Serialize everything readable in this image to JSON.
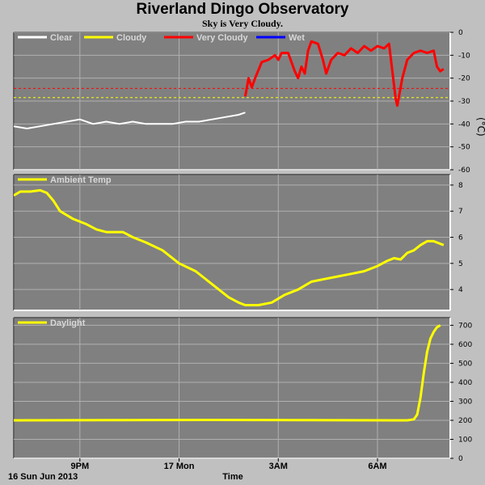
{
  "header": {
    "title": "Riverland Dingo Observatory",
    "subtitle": "Sky is Very Cloudy."
  },
  "x_axis": {
    "tick_labels": [
      "9PM",
      "17 Mon",
      "3AM",
      "6AM"
    ],
    "tick_hours": [
      21,
      24,
      27,
      30
    ],
    "start_label": "16 Sun Jun 2013",
    "label": "Time"
  },
  "colors": {
    "clear": "#ffffff",
    "cloudy": "#ffff00",
    "very_cloudy": "#ff0000",
    "wet": "#0000ff",
    "plot_bg": "#808080",
    "grid": "#b0b0b0"
  },
  "chart_data": [
    {
      "type": "line",
      "name": "sky-temperature",
      "legend": [
        "Clear",
        "Cloudy",
        "Very Cloudy",
        "Wet"
      ],
      "ylabel": "(°C)",
      "ylim": [
        -60,
        0
      ],
      "yticks": [
        0,
        -10,
        -20,
        -30,
        -40,
        -50,
        -60
      ],
      "thresholds": [
        {
          "value": -24.5,
          "color": "#ff0000"
        },
        {
          "value": -28.5,
          "color": "#ffff00"
        }
      ],
      "series": [
        {
          "name": "Clear",
          "color": "#ffffff",
          "points": [
            [
              19.0,
              -41
            ],
            [
              19.4,
              -42
            ],
            [
              19.8,
              -41
            ],
            [
              20.2,
              -40
            ],
            [
              20.6,
              -39
            ],
            [
              21.0,
              -38
            ],
            [
              21.4,
              -40
            ],
            [
              21.8,
              -39
            ],
            [
              22.2,
              -40
            ],
            [
              22.6,
              -39
            ],
            [
              23.0,
              -40
            ],
            [
              23.4,
              -40
            ],
            [
              23.8,
              -40
            ],
            [
              24.2,
              -39
            ],
            [
              24.6,
              -39
            ],
            [
              25.0,
              -38
            ],
            [
              25.4,
              -37
            ],
            [
              25.8,
              -36
            ],
            [
              26.0,
              -35
            ]
          ]
        },
        {
          "name": "Very Cloudy",
          "color": "#ff0000",
          "points": [
            [
              26.0,
              -28
            ],
            [
              26.1,
              -20
            ],
            [
              26.2,
              -24
            ],
            [
              26.3,
              -20
            ],
            [
              26.5,
              -13
            ],
            [
              26.7,
              -12
            ],
            [
              26.9,
              -10
            ],
            [
              27.0,
              -12
            ],
            [
              27.1,
              -9
            ],
            [
              27.3,
              -9
            ],
            [
              27.5,
              -17
            ],
            [
              27.6,
              -20
            ],
            [
              27.7,
              -15
            ],
            [
              27.8,
              -18
            ],
            [
              27.9,
              -8
            ],
            [
              28.0,
              -4
            ],
            [
              28.2,
              -5
            ],
            [
              28.35,
              -12
            ],
            [
              28.45,
              -18
            ],
            [
              28.6,
              -12
            ],
            [
              28.8,
              -9
            ],
            [
              29.0,
              -10
            ],
            [
              29.2,
              -7
            ],
            [
              29.4,
              -9
            ],
            [
              29.6,
              -6
            ],
            [
              29.8,
              -8
            ],
            [
              30.0,
              -6
            ],
            [
              30.2,
              -7
            ],
            [
              30.35,
              -5
            ],
            [
              30.55,
              -29
            ],
            [
              30.6,
              -32
            ],
            [
              30.75,
              -20
            ],
            [
              30.9,
              -12
            ],
            [
              31.1,
              -9
            ],
            [
              31.3,
              -8
            ],
            [
              31.5,
              -9
            ],
            [
              31.7,
              -8
            ],
            [
              31.8,
              -15
            ],
            [
              31.9,
              -17
            ],
            [
              32.0,
              -16
            ]
          ]
        }
      ]
    },
    {
      "type": "line",
      "name": "ambient-temp",
      "legend": [
        "Ambient Temp"
      ],
      "ylim": [
        3.2,
        8.4
      ],
      "yticks": [
        8,
        7,
        6,
        5,
        4
      ],
      "series": [
        {
          "name": "Ambient Temp",
          "color": "#ffff00",
          "points": [
            [
              19.0,
              7.6
            ],
            [
              19.2,
              7.75
            ],
            [
              19.5,
              7.75
            ],
            [
              19.8,
              7.8
            ],
            [
              20.0,
              7.7
            ],
            [
              20.2,
              7.4
            ],
            [
              20.4,
              7.0
            ],
            [
              20.8,
              6.7
            ],
            [
              21.2,
              6.5
            ],
            [
              21.5,
              6.3
            ],
            [
              21.8,
              6.2
            ],
            [
              22.0,
              6.2
            ],
            [
              22.3,
              6.2
            ],
            [
              22.6,
              6.0
            ],
            [
              23.0,
              5.8
            ],
            [
              23.5,
              5.5
            ],
            [
              24.0,
              5.0
            ],
            [
              24.5,
              4.7
            ],
            [
              25.0,
              4.2
            ],
            [
              25.5,
              3.7
            ],
            [
              25.8,
              3.5
            ],
            [
              26.0,
              3.4
            ],
            [
              26.4,
              3.4
            ],
            [
              26.8,
              3.5
            ],
            [
              27.2,
              3.8
            ],
            [
              27.6,
              4.0
            ],
            [
              28.0,
              4.3
            ],
            [
              28.4,
              4.4
            ],
            [
              28.8,
              4.5
            ],
            [
              29.2,
              4.6
            ],
            [
              29.6,
              4.7
            ],
            [
              30.0,
              4.9
            ],
            [
              30.3,
              5.1
            ],
            [
              30.5,
              5.2
            ],
            [
              30.7,
              5.15
            ],
            [
              30.9,
              5.4
            ],
            [
              31.1,
              5.5
            ],
            [
              31.3,
              5.7
            ],
            [
              31.5,
              5.85
            ],
            [
              31.7,
              5.85
            ],
            [
              31.9,
              5.75
            ],
            [
              32.0,
              5.7
            ]
          ]
        }
      ]
    },
    {
      "type": "line",
      "name": "daylight",
      "legend": [
        "Daylight"
      ],
      "ylim": [
        0,
        740
      ],
      "yticks": [
        700,
        600,
        500,
        400,
        300,
        200,
        100,
        0
      ],
      "series": [
        {
          "name": "Daylight",
          "color": "#ffff00",
          "points": [
            [
              19.0,
              200
            ],
            [
              22.0,
              201
            ],
            [
              25.0,
              202
            ],
            [
              28.0,
              201
            ],
            [
              30.5,
              200
            ],
            [
              30.9,
              200
            ],
            [
              31.1,
              205
            ],
            [
              31.2,
              230
            ],
            [
              31.3,
              320
            ],
            [
              31.4,
              450
            ],
            [
              31.5,
              560
            ],
            [
              31.6,
              630
            ],
            [
              31.7,
              665
            ],
            [
              31.8,
              690
            ],
            [
              31.9,
              700
            ]
          ]
        }
      ]
    }
  ]
}
